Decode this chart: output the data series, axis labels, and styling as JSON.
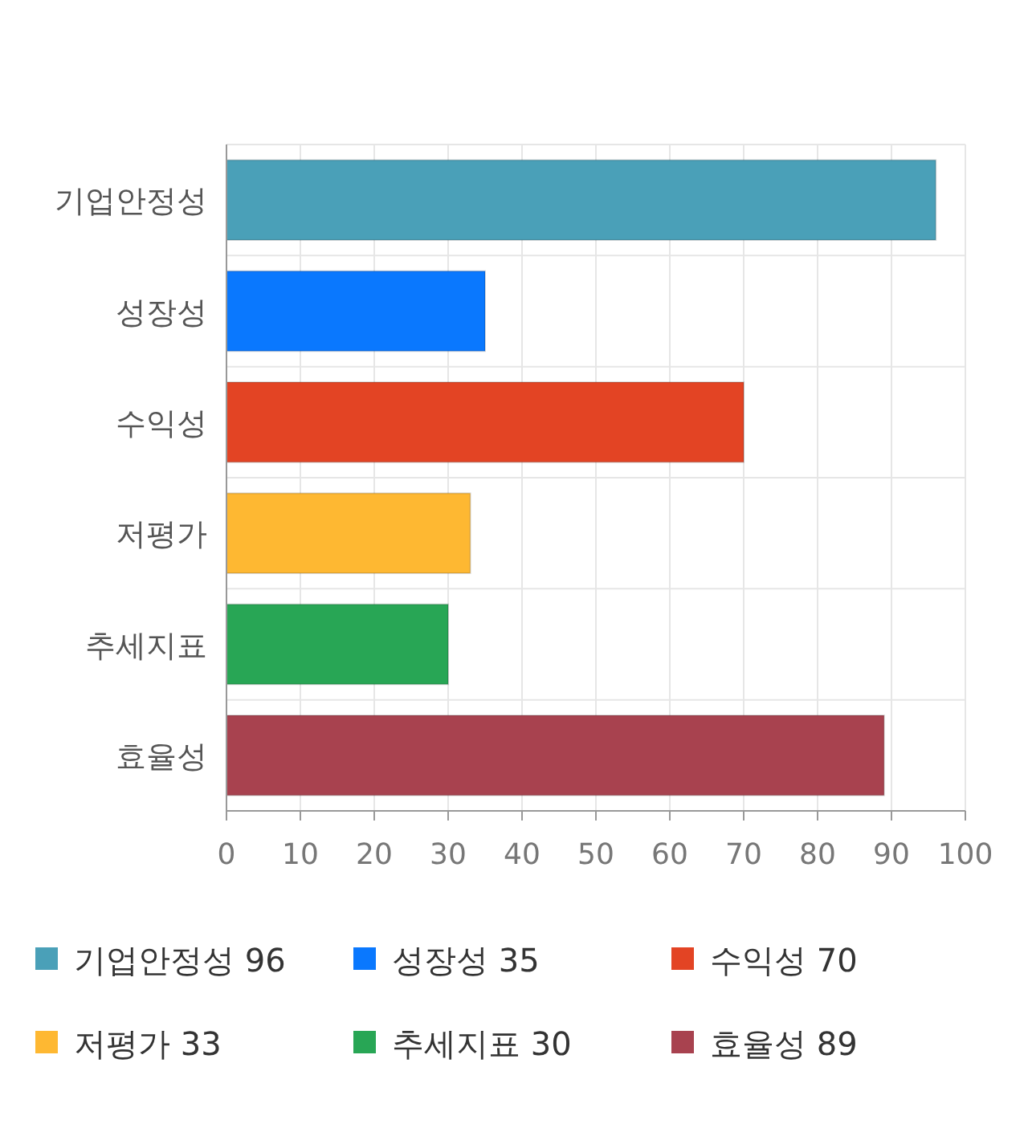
{
  "chart_data": {
    "type": "bar",
    "orientation": "horizontal",
    "categories": [
      "기업안정성",
      "성장성",
      "수익성",
      "저평가",
      "추세지표",
      "효율성"
    ],
    "series": [
      {
        "name": "기업안정성 96",
        "color": "#4aa0b8",
        "values": [
          96,
          null,
          null,
          null,
          null,
          null
        ]
      },
      {
        "name": "성장성 35",
        "color": "#0a78fe",
        "values": [
          null,
          35,
          null,
          null,
          null,
          null
        ]
      },
      {
        "name": "수익성 70",
        "color": "#e34424",
        "values": [
          null,
          null,
          70,
          null,
          null,
          null
        ]
      },
      {
        "name": "저평가 33",
        "color": "#feb832",
        "values": [
          null,
          null,
          null,
          33,
          null,
          null
        ]
      },
      {
        "name": "추세지표 30",
        "color": "#28a655",
        "values": [
          null,
          null,
          null,
          null,
          30,
          null
        ]
      },
      {
        "name": "효율성 89",
        "color": "#a8424f",
        "values": [
          null,
          null,
          null,
          null,
          null,
          89
        ]
      }
    ],
    "xlim": [
      0,
      100
    ],
    "xticks": [
      0,
      10,
      20,
      30,
      40,
      50,
      60,
      70,
      80,
      90,
      100
    ],
    "grid": true,
    "legend": "bottom"
  }
}
